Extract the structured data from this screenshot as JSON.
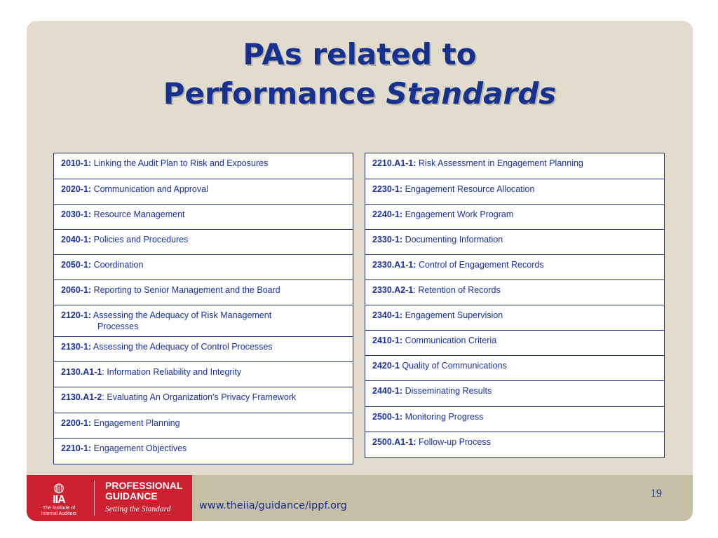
{
  "title": {
    "line1": "PAs related to",
    "line2_plain": "Performance ",
    "line2_italic": "Standards"
  },
  "left_rows": [
    {
      "code": "2010-1:",
      "text": " Linking the Audit Plan to Risk and Exposures"
    },
    {
      "code": "2020-1:",
      "text": " Communication and Approval"
    },
    {
      "code": "2030-1:",
      "text": " Resource Management"
    },
    {
      "code": "2040-1:",
      "text": " Policies and Procedures"
    },
    {
      "code": "2050-1:",
      "text": " Coordination"
    },
    {
      "code": "2060-1:",
      "text": " Reporting to Senior Management and the Board"
    },
    {
      "code": "2120-1:",
      "text": " Assessing the Adequacy of Risk Management",
      "cont": "Processes"
    },
    {
      "code": "2130-1:",
      "text": " Assessing the Adequacy of Control Processes"
    },
    {
      "code": "2130.A1-1",
      "text": ": Information Reliability and Integrity"
    },
    {
      "code": "2130.A1-2",
      "text": ": Evaluating An Organization's Privacy Framework"
    },
    {
      "code": "2200-1:",
      "text": " Engagement Planning"
    },
    {
      "code": "2210-1:",
      "text": " Engagement Objectives"
    }
  ],
  "right_rows": [
    {
      "code": "2210.A1-1:",
      "text": " Risk Assessment in Engagement Planning"
    },
    {
      "code": "2230-1:",
      "text": " Engagement Resource Allocation"
    },
    {
      "code": "2240-1:",
      "text": " Engagement Work Program"
    },
    {
      "code": "2330-1:",
      "text": " Documenting Information"
    },
    {
      "code": "2330.A1-1:",
      "text": " Control of Engagement Records"
    },
    {
      "code": "2330.A2-1",
      "text": ": Retention of Records"
    },
    {
      "code": "2340-1:",
      "text": " Engagement Supervision"
    },
    {
      "code": "2410-1:",
      "text": " Communication Criteria"
    },
    {
      "code": "2420-1",
      "text": " Quality of Communications"
    },
    {
      "code": "2440-1:",
      "text": " Disseminating Results"
    },
    {
      "code": "2500-1:",
      "text": " Monitoring Progress"
    },
    {
      "code": "2500.A1-1:",
      "text": " Follow-up Process"
    }
  ],
  "footer": {
    "logo_abbrev": "IIA",
    "logo_org_line1": "The Institute of",
    "logo_org_line2": "Internal Auditors",
    "guidance_line1": "PROFESSIONAL",
    "guidance_line2": "GUIDANCE",
    "tagline": "Setting the Standard",
    "url": "www.theiia/guidance/ippf.org",
    "page_number": "19"
  },
  "colors": {
    "slide_bg": "#e1dccd",
    "title": "#16318e",
    "table_text": "#1a32a0",
    "footer_bar": "#c5bfa6",
    "logo_red": "#cc2131"
  }
}
